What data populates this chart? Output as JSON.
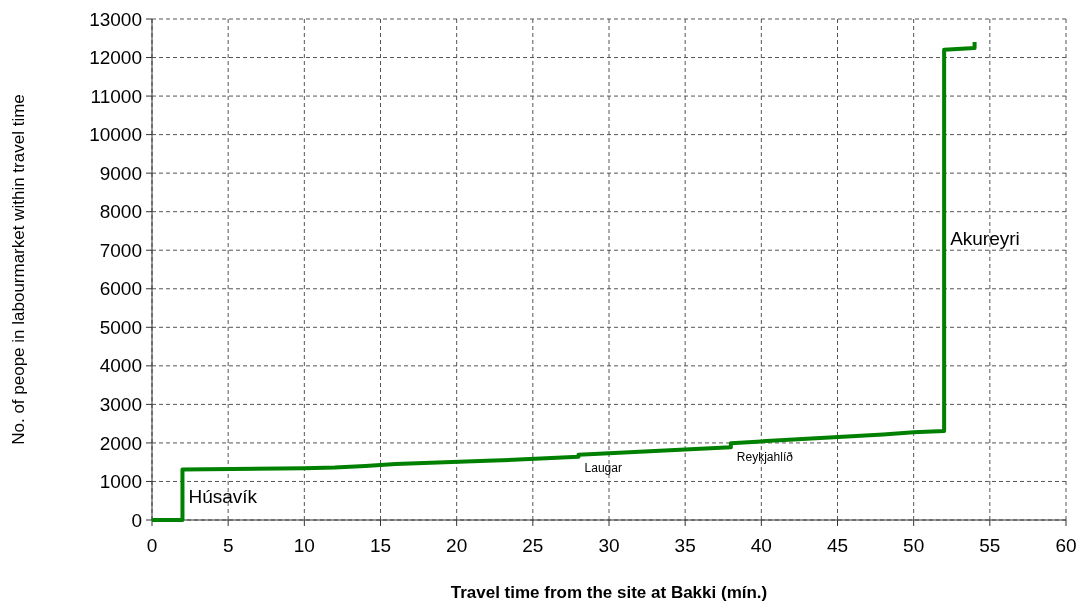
{
  "chart_data": {
    "type": "line",
    "xlabel": "Travel time from the site at Bakki (mín.)",
    "ylabel": "No. of peope in labourmarket within travel time",
    "xlim": [
      0,
      60
    ],
    "xticks": [
      0,
      5,
      10,
      15,
      20,
      25,
      30,
      35,
      40,
      45,
      50,
      55,
      60
    ],
    "ylim": [
      0,
      13000
    ],
    "yticks": [
      0,
      1000,
      2000,
      3000,
      4000,
      5000,
      6000,
      7000,
      8000,
      9000,
      10000,
      11000,
      12000,
      13000
    ],
    "grid": true,
    "series": [
      {
        "color": "#008000",
        "x": [
          0,
          2,
          2,
          10,
          12,
          14,
          16,
          22,
          23,
          28,
          28,
          38,
          38,
          40,
          48,
          50,
          52,
          52,
          54,
          54
        ],
        "values": [
          0,
          0,
          1310,
          1340,
          1360,
          1400,
          1450,
          1540,
          1550,
          1640,
          1690,
          1890,
          1990,
          2040,
          2220,
          2280,
          2310,
          12200,
          12250,
          12400
        ]
      }
    ],
    "annotations": [
      {
        "text": "Húsavík",
        "x": 2,
        "y": 650
      },
      {
        "text": "Laugar",
        "x": 28,
        "y": 1665
      },
      {
        "text": "Reykjahlíð",
        "x": 38,
        "y": 1940
      },
      {
        "text": "Akureyri",
        "x": 52,
        "y": 7350
      }
    ]
  }
}
